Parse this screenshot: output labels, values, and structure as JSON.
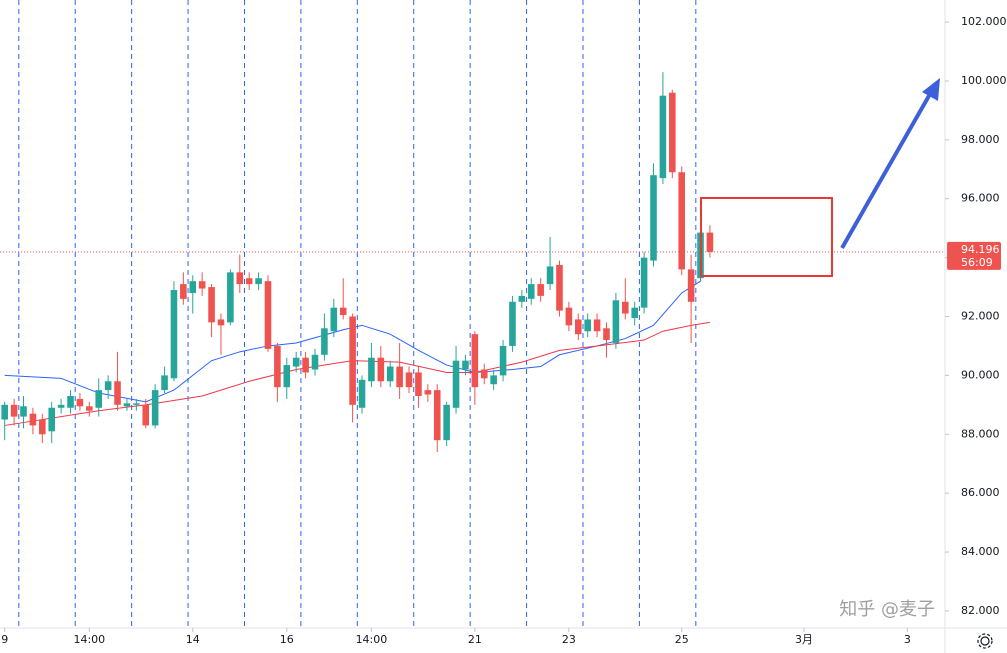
{
  "chart_data": {
    "type": "candlestick",
    "x": [
      0,
      1,
      2,
      3,
      4,
      5,
      6,
      7,
      8,
      9,
      10,
      11,
      12,
      13,
      14,
      15,
      16,
      17,
      18,
      19,
      20,
      21,
      22,
      23,
      24,
      25,
      26,
      27,
      28,
      29,
      30,
      31,
      32,
      33,
      34,
      35,
      36,
      37,
      38,
      39,
      40,
      41,
      42,
      43,
      44,
      45,
      46,
      47,
      48,
      49,
      50,
      51,
      52,
      53,
      54,
      55,
      56,
      57,
      58,
      59,
      60,
      61,
      62,
      63,
      64,
      65,
      66,
      67,
      68,
      69,
      70,
      71,
      72,
      73,
      74,
      75
    ],
    "open": [
      88.5,
      89.0,
      88.6,
      88.7,
      88.5,
      88.1,
      88.9,
      88.9,
      89.2,
      88.95,
      88.9,
      89.5,
      89.8,
      88.95,
      89.0,
      89.0,
      88.3,
      89.5,
      89.9,
      93.1,
      92.8,
      93.2,
      93.0,
      91.9,
      91.8,
      93.5,
      93.3,
      93.1,
      93.2,
      91.0,
      89.6,
      90.3,
      90.6,
      90.2,
      90.7,
      91.5,
      92.3,
      92.0,
      88.9,
      89.8,
      90.6,
      89.8,
      90.3,
      90.1,
      90.1,
      89.5,
      89.5,
      87.8,
      88.9,
      90.2,
      91.4,
      90.2,
      89.7,
      90.0,
      91.0,
      92.5,
      92.6,
      93.1,
      93.1,
      93.75,
      92.3,
      91.9,
      91.5,
      91.9,
      91.6,
      91.1,
      92.5,
      91.95,
      92.3,
      93.9,
      96.7,
      99.6,
      96.9,
      93.6,
      93.3,
      94.85
    ],
    "high": [
      89.1,
      89.2,
      89.3,
      88.9,
      88.7,
      89.1,
      89.2,
      89.5,
      89.4,
      89.1,
      89.9,
      90.0,
      90.8,
      89.2,
      89.2,
      89.2,
      89.7,
      90.3,
      93.2,
      93.5,
      93.4,
      93.5,
      93.1,
      92.1,
      93.6,
      94.1,
      93.5,
      93.5,
      93.4,
      91.1,
      90.6,
      90.8,
      90.8,
      90.9,
      92.1,
      92.6,
      93.3,
      92.1,
      90.0,
      91.1,
      91.0,
      90.5,
      91.1,
      90.3,
      90.3,
      89.7,
      89.7,
      89.1,
      91.0,
      90.7,
      91.5,
      90.4,
      90.2,
      91.2,
      92.7,
      92.9,
      93.3,
      93.3,
      94.7,
      93.9,
      92.5,
      92.1,
      92.1,
      92.1,
      91.8,
      92.8,
      93.3,
      92.5,
      94.2,
      97.2,
      100.3,
      99.7,
      97.1,
      94.1,
      95.2,
      95.1
    ],
    "low": [
      87.8,
      88.3,
      88.2,
      88.0,
      87.7,
      87.7,
      88.7,
      88.7,
      88.8,
      88.6,
      88.6,
      89.2,
      88.8,
      88.8,
      88.8,
      88.2,
      88.2,
      89.4,
      89.8,
      92.4,
      92.1,
      92.7,
      91.3,
      90.7,
      91.7,
      92.8,
      92.9,
      92.9,
      90.8,
      89.1,
      89.2,
      90.1,
      89.9,
      90.0,
      90.5,
      91.3,
      91.9,
      88.4,
      88.7,
      89.6,
      89.6,
      89.6,
      89.2,
      89.4,
      88.9,
      89.1,
      87.4,
      87.6,
      88.7,
      90.0,
      89.0,
      89.7,
      89.5,
      89.8,
      90.8,
      92.3,
      92.4,
      92.5,
      92.9,
      92.0,
      91.5,
      91.2,
      91.3,
      91.3,
      90.6,
      90.9,
      91.9,
      91.7,
      92.1,
      93.7,
      96.5,
      96.7,
      93.4,
      91.1,
      93.2,
      94.0
    ],
    "close": [
      89.0,
      88.6,
      88.95,
      88.3,
      88.0,
      88.9,
      89.0,
      89.3,
      88.95,
      88.8,
      89.5,
      89.8,
      89.0,
      89.05,
      89.05,
      88.3,
      89.5,
      90.0,
      92.9,
      92.6,
      93.2,
      92.95,
      91.8,
      91.7,
      93.5,
      93.1,
      93.1,
      93.3,
      90.9,
      89.6,
      90.35,
      90.6,
      90.1,
      90.7,
      91.6,
      92.3,
      92.05,
      89.0,
      89.85,
      90.6,
      89.8,
      90.3,
      89.6,
      89.6,
      89.3,
      89.35,
      87.8,
      89.0,
      90.5,
      90.5,
      89.6,
      89.9,
      90.0,
      91.0,
      92.5,
      92.7,
      93.1,
      92.7,
      93.7,
      92.2,
      91.7,
      91.4,
      91.9,
      91.5,
      91.2,
      92.55,
      92.1,
      92.3,
      94.0,
      96.8,
      99.5,
      96.9,
      93.6,
      92.5,
      94.85,
      94.196
    ],
    "up_color": "#26a69a",
    "down_color": "#ef5350",
    "moving_averages": [
      {
        "color": "#2962ff",
        "x": [
          0,
          6,
          10,
          15,
          18,
          22,
          25,
          28,
          31,
          36,
          38,
          41,
          44,
          47,
          50,
          54,
          57,
          59,
          63,
          66,
          69,
          72,
          74
        ],
        "values": [
          90.0,
          89.9,
          89.4,
          89.1,
          89.5,
          90.5,
          90.8,
          91.0,
          91.1,
          91.55,
          91.7,
          91.4,
          90.85,
          90.35,
          90.1,
          90.2,
          90.3,
          90.7,
          91.0,
          91.25,
          91.7,
          92.8,
          93.2
        ]
      },
      {
        "color": "#f23645",
        "x": [
          0,
          10,
          15,
          21,
          26,
          31,
          37,
          42,
          47,
          50,
          55,
          59,
          63,
          68,
          70,
          73,
          75
        ],
        "values": [
          88.3,
          88.8,
          89.0,
          89.3,
          89.8,
          90.2,
          90.5,
          90.45,
          90.1,
          90.1,
          90.45,
          90.85,
          91.0,
          91.2,
          91.5,
          91.7,
          91.8
        ]
      }
    ],
    "session_breaks": [
      1.5,
      7.5,
      13.5,
      19.5,
      25.5,
      31.5,
      37.5,
      43.5,
      49.5,
      55.5,
      61.5,
      67.5,
      73.5
    ],
    "last_price": 94.196,
    "last_price_label": "94.196",
    "countdown": "56:09",
    "xlim": [
      -0.5,
      100
    ],
    "ylim": [
      81.42,
      102.75
    ],
    "xticks": [
      {
        "value": 0,
        "label": "9"
      },
      {
        "value": 9,
        "label": "14:00"
      },
      {
        "value": 20,
        "label": "14"
      },
      {
        "value": 30,
        "label": "16"
      },
      {
        "value": 39,
        "label": "14:00"
      },
      {
        "value": 50,
        "label": "21"
      },
      {
        "value": 60,
        "label": "23"
      },
      {
        "value": 72,
        "label": "25"
      },
      {
        "value": 85,
        "label": "3月"
      },
      {
        "value": 96,
        "label": "3"
      }
    ],
    "yticks": [
      {
        "value": 82,
        "label": "82.000"
      },
      {
        "value": 84,
        "label": "84.000"
      },
      {
        "value": 86,
        "label": "86.000"
      },
      {
        "value": 88,
        "label": "88.000"
      },
      {
        "value": 90,
        "label": "90.000"
      },
      {
        "value": 92,
        "label": "92.000"
      },
      {
        "value": 94,
        "label": "94.000"
      },
      {
        "value": 96,
        "label": "96.000"
      },
      {
        "value": 98,
        "label": "98.000"
      },
      {
        "value": 100,
        "label": "100.000"
      },
      {
        "value": 102,
        "label": "102.000"
      }
    ],
    "watermark": "知乎 @麦子"
  }
}
